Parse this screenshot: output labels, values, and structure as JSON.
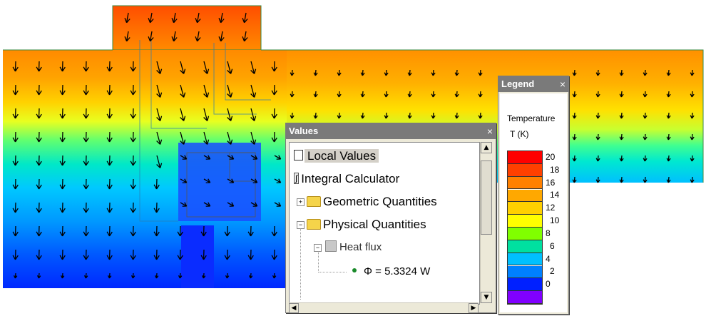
{
  "values_panel": {
    "title": "Values",
    "close_glyph": "×",
    "items": {
      "local_values": "Local Values",
      "integral_calculator": "Integral Calculator",
      "geometric_quantities": "Geometric Quantities",
      "physical_quantities": "Physical Quantities",
      "heat_flux": "Heat flux",
      "phi_value": "Φ = 5.3324 W"
    }
  },
  "legend_panel": {
    "title": "Legend",
    "close_glyph": "×",
    "quantity": "Temperature",
    "unit": "T (K)",
    "ticks": [
      "20",
      "18",
      "16",
      "14",
      "12",
      "10",
      "8",
      "6",
      "4",
      "2",
      "0"
    ],
    "colors": [
      "#ff0000",
      "#ff4000",
      "#ff8000",
      "#ffa800",
      "#ffd000",
      "#ffff00",
      "#80ff00",
      "#00e0a0",
      "#00c0ff",
      "#0080ff",
      "#0020ff",
      "#8000ff"
    ]
  },
  "field_colors": {
    "hot": "#ff4a00",
    "warm": "#ffa000",
    "mid": "#ffff00",
    "cool": "#00e0c0",
    "cold": "#0080ff",
    "coldest": "#0020ff"
  }
}
